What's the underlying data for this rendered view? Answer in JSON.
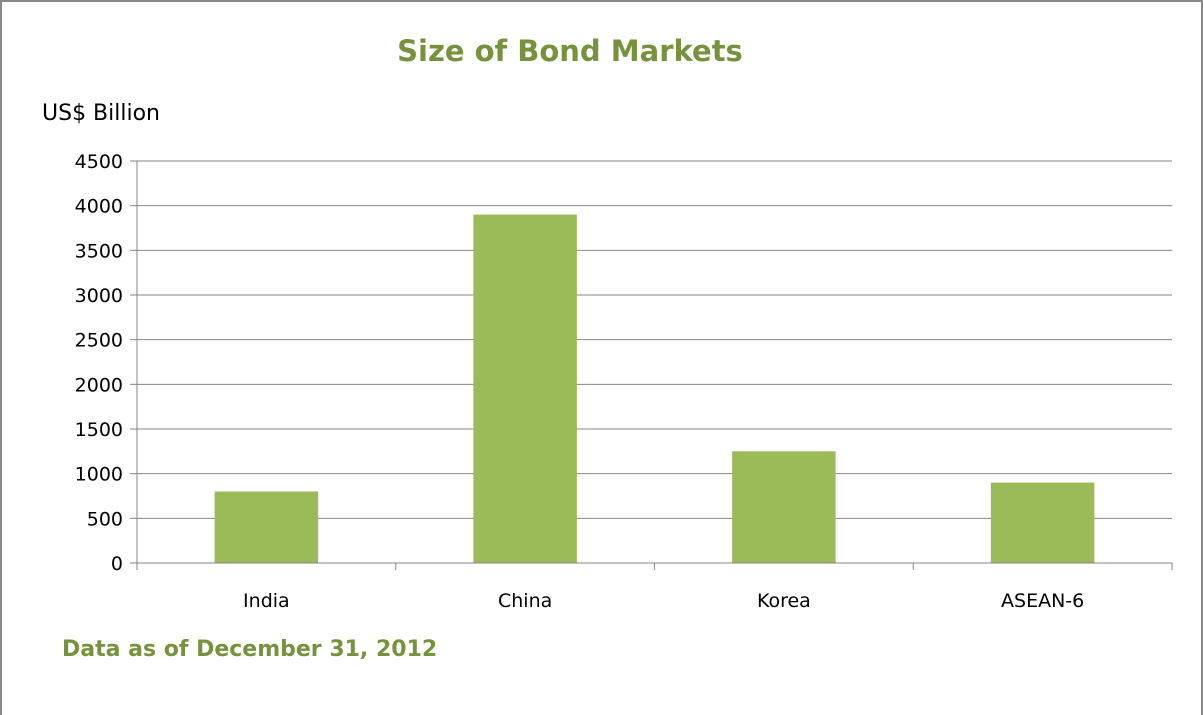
{
  "chart_data": {
    "type": "bar",
    "title": "Size of Bond Markets",
    "ylabel": "US$ Billion",
    "xlabel": "",
    "categories": [
      "India",
      "China",
      "Korea",
      "ASEAN-6"
    ],
    "values": [
      800,
      3900,
      1250,
      900
    ],
    "ylim": [
      0,
      4500
    ],
    "yticks": [
      "0",
      "500",
      "1000",
      "1500",
      "2000",
      "2500",
      "3000",
      "3500",
      "4000",
      "4500"
    ],
    "grid": true,
    "legend": "none",
    "bar_color": "#9bbb59",
    "note": "Data as of December 31, 2012"
  },
  "colors": {
    "title": "#76923c",
    "gridline": "#868686",
    "axis": "#868686"
  }
}
